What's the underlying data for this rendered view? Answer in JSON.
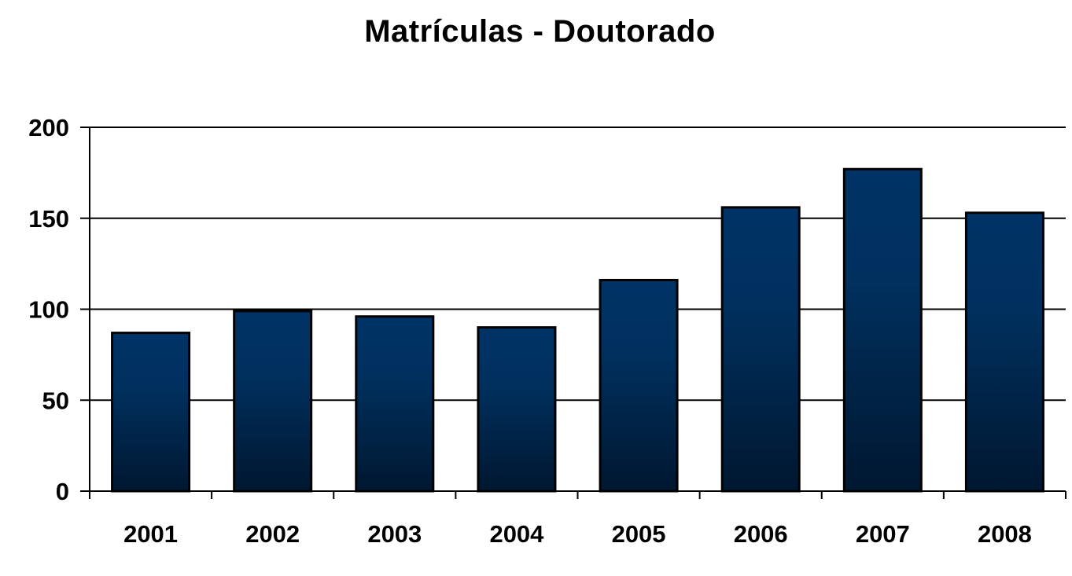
{
  "chart_data": {
    "type": "bar",
    "title": "Matrículas - Doutorado",
    "xlabel": "",
    "ylabel": "",
    "categories": [
      "2001",
      "2002",
      "2003",
      "2004",
      "2005",
      "2006",
      "2007",
      "2008"
    ],
    "values": [
      87,
      99,
      96,
      90,
      116,
      156,
      177,
      153
    ],
    "ylim": [
      0,
      200
    ],
    "yticks": [
      0,
      50,
      100,
      150,
      200
    ],
    "grid": true,
    "legend": null,
    "bar_color_top": "#003366",
    "bar_color_bottom": "#001a33",
    "bar_border_color": "#000000"
  }
}
